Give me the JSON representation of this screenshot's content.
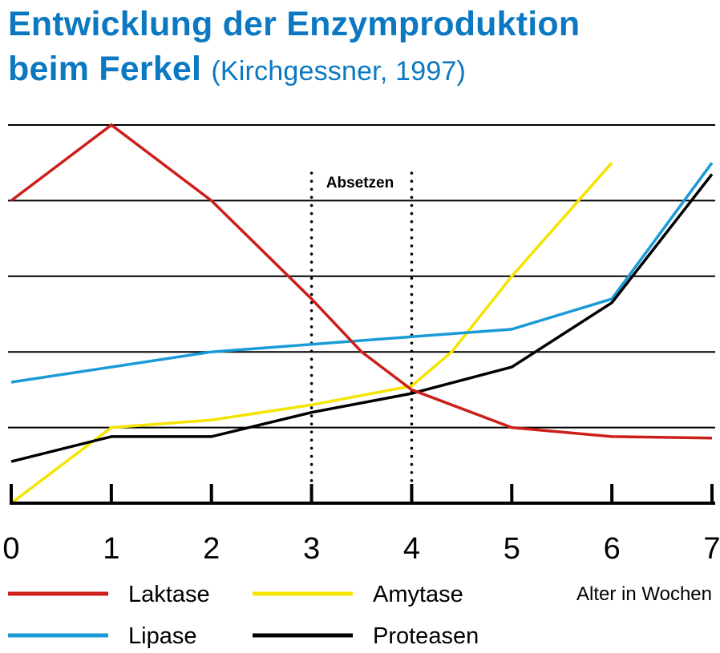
{
  "title": {
    "main_line1": "Entwicklung der Enzymproduktion",
    "main_line2": "beim Ferkel",
    "source": "(Kirchgessner, 1997)"
  },
  "chart_data": {
    "type": "line",
    "xlabel": "Alter in Wochen",
    "ylabel": "",
    "xlim": [
      0,
      7
    ],
    "ylim": [
      0,
      5
    ],
    "grid": true,
    "x_ticks": [
      "0",
      "1",
      "2",
      "3",
      "4",
      "5",
      "6",
      "7"
    ],
    "annotation": {
      "label": "Absetzen",
      "x_from": 3,
      "x_to": 4
    },
    "legend_position": "bottom",
    "series": [
      {
        "name": "Laktase",
        "color": "#cc1f1a",
        "points": [
          [
            0,
            4.0
          ],
          [
            1,
            5.0
          ],
          [
            2,
            4.0
          ],
          [
            3,
            2.7
          ],
          [
            3.5,
            2.0
          ],
          [
            4,
            1.5
          ],
          [
            5,
            1.0
          ],
          [
            6,
            0.88
          ],
          [
            7,
            0.86
          ]
        ]
      },
      {
        "name": "Amytase",
        "color": "#f5e400",
        "points": [
          [
            0,
            0.0
          ],
          [
            1,
            1.0
          ],
          [
            2,
            1.1
          ],
          [
            3,
            1.3
          ],
          [
            4,
            1.55
          ],
          [
            4.4,
            2.0
          ],
          [
            5,
            3.0
          ],
          [
            6,
            4.5
          ]
        ]
      },
      {
        "name": "Lipase",
        "color": "#1a9bd7",
        "points": [
          [
            0,
            1.6
          ],
          [
            1,
            1.8
          ],
          [
            2,
            2.0
          ],
          [
            3,
            2.1
          ],
          [
            4,
            2.2
          ],
          [
            5,
            2.3
          ],
          [
            6,
            2.7
          ],
          [
            7,
            4.5
          ]
        ]
      },
      {
        "name": "Proteasen",
        "color": "#000000",
        "points": [
          [
            0,
            0.55
          ],
          [
            1,
            0.88
          ],
          [
            2,
            0.88
          ],
          [
            3,
            1.2
          ],
          [
            4,
            1.45
          ],
          [
            5,
            1.8
          ],
          [
            6,
            2.65
          ],
          [
            7,
            4.35
          ]
        ]
      }
    ]
  }
}
